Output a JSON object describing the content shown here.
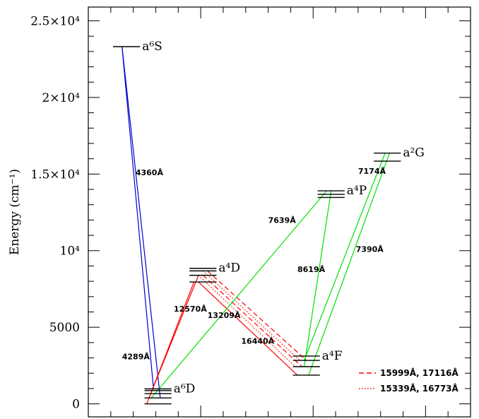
{
  "chart_data": {
    "type": "line",
    "ylabel": "Energy (cm⁻¹)",
    "ylim": [
      -850,
      25900
    ],
    "yticks": [
      {
        "value": 0,
        "label": "0"
      },
      {
        "value": 5000,
        "label": "5000"
      },
      {
        "value": 10000,
        "label": "10⁴"
      },
      {
        "value": 15000,
        "label": "1.5×10⁴"
      },
      {
        "value": 20000,
        "label": "2×10⁴"
      },
      {
        "value": 25000,
        "label": "2.5×10⁴"
      }
    ],
    "colors": {
      "blue": "#0000cc",
      "red": "#ff0000",
      "green": "#00e000",
      "axis": "#000000"
    },
    "levels": [
      {
        "term": "a⁶S",
        "energies": [
          23317
        ],
        "x_center": 1.7
      },
      {
        "term": "a⁶D",
        "energies": [
          0,
          385,
          668,
          863,
          977
        ],
        "x_center": 3.1
      },
      {
        "term": "a⁴D",
        "energies": [
          7955,
          8392,
          8680,
          8847
        ],
        "x_center": 5.1
      },
      {
        "term": "a⁴F",
        "energies": [
          1873,
          2430,
          2838,
          3117
        ],
        "x_center": 9.7
      },
      {
        "term": "a⁴P",
        "energies": [
          13474,
          13673,
          13905
        ],
        "x_center": 10.8
      },
      {
        "term": "a²G",
        "energies": [
          15844,
          16369
        ],
        "x_center": 13.3
      }
    ],
    "transitions": [
      {
        "from": [
          1.5,
          23317
        ],
        "to": [
          3.2,
          385
        ],
        "color": "blue",
        "style": "solid"
      },
      {
        "from": [
          1.5,
          23317
        ],
        "to": [
          2.9,
          977
        ],
        "color": "blue",
        "style": "solid"
      },
      {
        "from": [
          2.6,
          0
        ],
        "to": [
          4.7,
          7955
        ],
        "color": "red",
        "style": "solid"
      },
      {
        "from": [
          2.7,
          385
        ],
        "to": [
          4.9,
          8392
        ],
        "color": "red",
        "style": "solid"
      },
      {
        "from": [
          4.9,
          7955
        ],
        "to": [
          9.3,
          1873
        ],
        "color": "red",
        "style": "solid"
      },
      {
        "from": [
          5.1,
          8392
        ],
        "to": [
          9.5,
          2430
        ],
        "color": "red",
        "style": "dashed"
      },
      {
        "from": [
          5.3,
          8680
        ],
        "to": [
          9.7,
          2838
        ],
        "color": "red",
        "style": "dashed"
      },
      {
        "from": [
          4.9,
          8392
        ],
        "to": [
          9.2,
          2430
        ],
        "color": "red",
        "style": "dotted"
      },
      {
        "from": [
          5.1,
          8680
        ],
        "to": [
          9.4,
          2838
        ],
        "color": "red",
        "style": "dotted"
      },
      {
        "from": [
          2.8,
          385
        ],
        "to": [
          10.6,
          13905
        ],
        "color": "green",
        "style": "solid"
      },
      {
        "from": [
          9.6,
          2430
        ],
        "to": [
          10.8,
          13905
        ],
        "color": "green",
        "style": "solid"
      },
      {
        "from": [
          9.6,
          2838
        ],
        "to": [
          13.2,
          16369
        ],
        "color": "green",
        "style": "solid"
      },
      {
        "from": [
          9.8,
          1873
        ],
        "to": [
          13.4,
          16369
        ],
        "color": "green",
        "style": "solid"
      }
    ],
    "annotations": [
      {
        "text": "4360Å",
        "x": 2.1,
        "y": 15100
      },
      {
        "text": "4289Å",
        "x": 1.5,
        "y": 3100
      },
      {
        "text": "12570Å",
        "x": 3.8,
        "y": 6200
      },
      {
        "text": "13209Å",
        "x": 5.3,
        "y": 5800
      },
      {
        "text": "16440Å",
        "x": 6.8,
        "y": 4100
      },
      {
        "text": "7639Å",
        "x": 8.0,
        "y": 12000
      },
      {
        "text": "8619Å",
        "x": 9.3,
        "y": 8800
      },
      {
        "text": "7390Å",
        "x": 11.9,
        "y": 10100
      },
      {
        "text": "7174Å",
        "x": 12.0,
        "y": 15200
      }
    ],
    "legend": {
      "position": "bottom-right",
      "entries": [
        {
          "label": "15999Å, 17116Å",
          "color": "red",
          "style": "dashed"
        },
        {
          "label": "15339Å, 16773Å",
          "color": "red",
          "style": "dotted"
        }
      ]
    }
  }
}
